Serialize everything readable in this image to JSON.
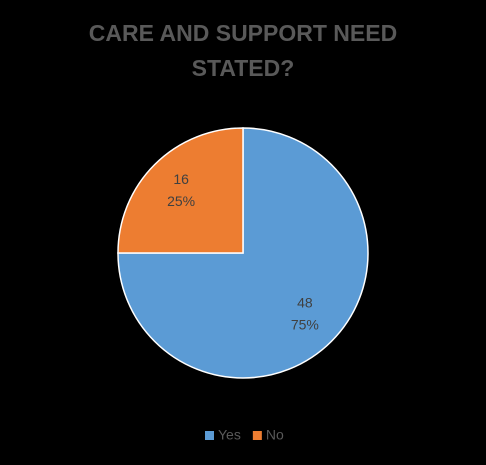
{
  "chart_data": {
    "type": "pie",
    "title": "CARE AND SUPPORT NEED STATED?",
    "categories": [
      "Yes",
      "No"
    ],
    "values": [
      48,
      16
    ],
    "percent_labels": [
      "75%",
      "25%"
    ],
    "colors": [
      "#5b9bd5",
      "#ed7d31"
    ],
    "legend": "bottom"
  }
}
